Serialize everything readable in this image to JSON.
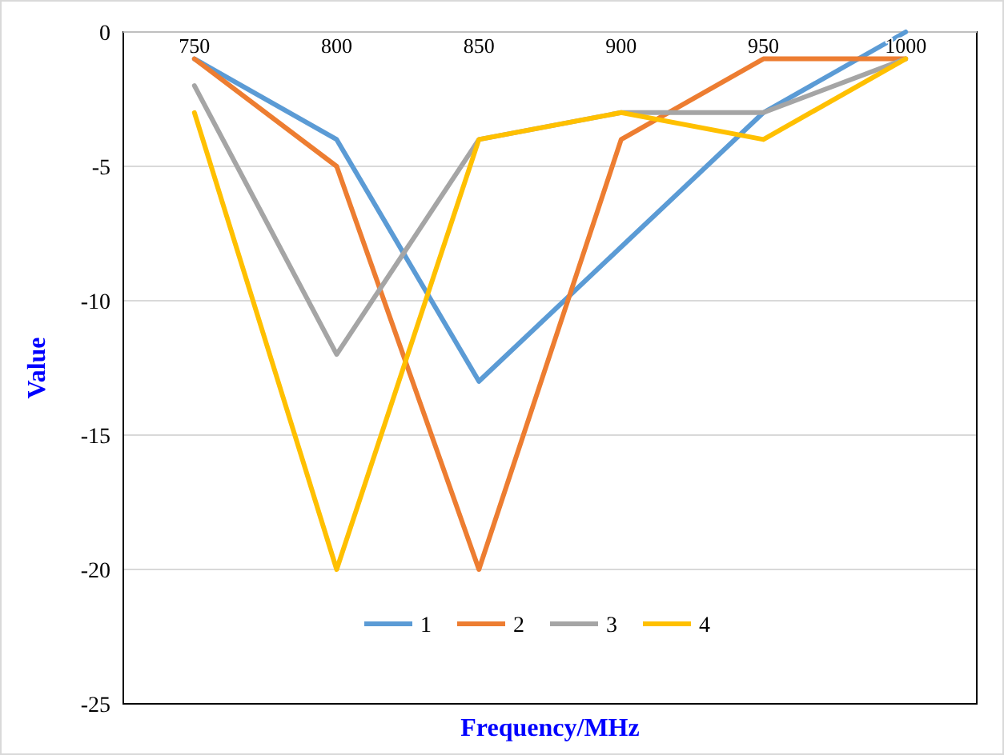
{
  "chart_data": {
    "type": "line",
    "xlabel": "Frequency/MHz",
    "ylabel": "Value",
    "categories": [
      "750",
      "800",
      "850",
      "900",
      "950",
      "1000"
    ],
    "series": [
      {
        "name": "1",
        "color": "#5b9bd5",
        "values": [
          -1,
          -4,
          -13,
          -8,
          -3,
          0
        ]
      },
      {
        "name": "2",
        "color": "#ed7d31",
        "values": [
          -1,
          -5,
          -20,
          -4,
          -1,
          -1
        ]
      },
      {
        "name": "3",
        "color": "#a5a5a5",
        "values": [
          -2,
          -12,
          -4,
          -3,
          -3,
          -1
        ]
      },
      {
        "name": "4",
        "color": "#ffc000",
        "values": [
          -3,
          -20,
          -4,
          -3,
          -4,
          -1
        ]
      }
    ],
    "ylim": [
      -25,
      0
    ],
    "yticks": [
      0,
      -5,
      -10,
      -15,
      -20,
      -25
    ],
    "grid": "y",
    "legend": "bottom",
    "marker": "none",
    "line_style": "solid"
  }
}
